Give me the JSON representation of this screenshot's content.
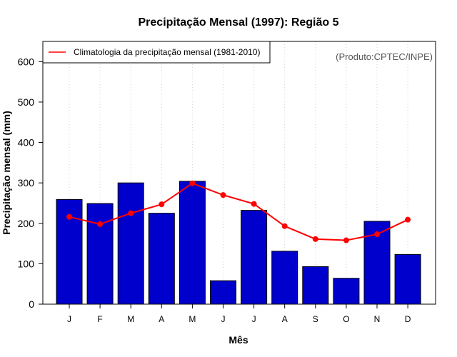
{
  "chart_data": {
    "type": "bar",
    "title": "Precipitação Mensal (1997): Região 5",
    "xlabel": "Mês",
    "ylabel": "Precipitação mensal (mm)",
    "categories": [
      "J",
      "F",
      "M",
      "A",
      "M",
      "J",
      "J",
      "A",
      "S",
      "O",
      "N",
      "D"
    ],
    "ylim": [
      0,
      650
    ],
    "yticks": [
      0,
      100,
      200,
      300,
      400,
      500,
      600
    ],
    "grid": "vertical-dotted",
    "legend_position": "top-left",
    "credit": "(Produto:CPTEC/INPE)",
    "series": [
      {
        "name": "Precipitação 1997",
        "type": "bar",
        "color": "#0000CD",
        "values": [
          259,
          249,
          300,
          225,
          304,
          58,
          232,
          131,
          93,
          64,
          205,
          123
        ]
      },
      {
        "name": "Climatologia da precipitação mensal (1981-2010)",
        "type": "line",
        "color": "#FF0000",
        "values": [
          216,
          198,
          225,
          247,
          299,
          270,
          248,
          193,
          161,
          158,
          173,
          209
        ]
      }
    ]
  }
}
